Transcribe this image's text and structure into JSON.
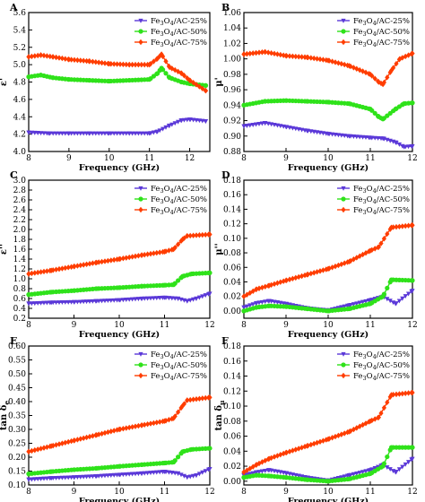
{
  "chart_data": [
    {
      "panel": "A",
      "type": "line",
      "xlabel": "Frequency (GHz)",
      "ylabel": "ε'",
      "xlim": [
        8,
        12.5
      ],
      "ylim": [
        4.0,
        5.6
      ],
      "xticks": [
        "8",
        "9",
        "10",
        "11",
        "12"
      ],
      "yticks": [
        "4.0",
        "4.2",
        "4.4",
        "4.6",
        "4.8",
        "5.0",
        "5.2",
        "5.4",
        "5.6"
      ],
      "legend": "top-right",
      "series": [
        {
          "name": "Fe3O4/AC-25%",
          "color": "#5b39d8",
          "marker": "triangle-down",
          "x": [
            8,
            8.5,
            9,
            9.5,
            10,
            10.5,
            11,
            11.2,
            11.5,
            11.8,
            12,
            12.4
          ],
          "y": [
            4.22,
            4.21,
            4.21,
            4.21,
            4.21,
            4.21,
            4.21,
            4.23,
            4.3,
            4.36,
            4.37,
            4.35
          ]
        },
        {
          "name": "Fe3O4/AC-50%",
          "color": "#2fe21a",
          "marker": "circle",
          "x": [
            8,
            8.3,
            8.6,
            9,
            9.5,
            10,
            10.5,
            11,
            11.2,
            11.3,
            11.5,
            11.8,
            12,
            12.4
          ],
          "y": [
            4.86,
            4.88,
            4.85,
            4.83,
            4.82,
            4.81,
            4.82,
            4.83,
            4.9,
            4.96,
            4.85,
            4.8,
            4.78,
            4.76
          ]
        },
        {
          "name": "Fe3O4/AC-75%",
          "color": "#ff3d00",
          "marker": "diamond",
          "x": [
            8,
            8.3,
            8.6,
            9,
            9.5,
            10,
            10.5,
            11,
            11.2,
            11.3,
            11.5,
            11.8,
            12,
            12.4
          ],
          "y": [
            5.09,
            5.11,
            5.09,
            5.06,
            5.04,
            5.01,
            5.0,
            5.0,
            5.07,
            5.12,
            4.97,
            4.9,
            4.82,
            4.7
          ]
        }
      ]
    },
    {
      "panel": "B",
      "type": "line",
      "xlabel": "Frequency (GHz)",
      "ylabel": "μ'",
      "xlim": [
        8,
        12
      ],
      "ylim": [
        0.88,
        1.06
      ],
      "xticks": [
        "8",
        "9",
        "10",
        "11",
        "12"
      ],
      "yticks": [
        "0.88",
        "0.90",
        "0.92",
        "0.94",
        "0.96",
        "0.98",
        "1.00",
        "1.02",
        "1.04",
        "1.06"
      ],
      "legend": "top-right",
      "series": [
        {
          "name": "Fe3O4/AC-25%",
          "color": "#5b39d8",
          "marker": "triangle-down",
          "x": [
            8,
            8.5,
            9,
            9.5,
            10,
            10.5,
            11,
            11.3,
            11.6,
            11.8,
            12
          ],
          "y": [
            0.913,
            0.917,
            0.912,
            0.907,
            0.903,
            0.9,
            0.898,
            0.897,
            0.892,
            0.886,
            0.887
          ]
        },
        {
          "name": "Fe3O4/AC-50%",
          "color": "#2fe21a",
          "marker": "circle",
          "x": [
            8,
            8.5,
            9,
            9.5,
            10,
            10.5,
            11,
            11.2,
            11.3,
            11.6,
            11.8,
            12
          ],
          "y": [
            0.94,
            0.945,
            0.946,
            0.945,
            0.944,
            0.942,
            0.935,
            0.925,
            0.922,
            0.935,
            0.942,
            0.943
          ]
        },
        {
          "name": "Fe3O4/AC-75%",
          "color": "#ff3d00",
          "marker": "diamond",
          "x": [
            8,
            8.5,
            9,
            9.5,
            10,
            10.5,
            11,
            11.2,
            11.3,
            11.5,
            11.7,
            12
          ],
          "y": [
            1.006,
            1.009,
            1.004,
            1.002,
            0.998,
            0.991,
            0.98,
            0.97,
            0.967,
            0.985,
            1.0,
            1.007
          ]
        }
      ]
    },
    {
      "panel": "C",
      "type": "line",
      "xlabel": "Frequency (GHz)",
      "ylabel": "ε''",
      "xlim": [
        8,
        12
      ],
      "ylim": [
        0.2,
        3.0
      ],
      "xticks": [
        "8",
        "9",
        "10",
        "11",
        "12"
      ],
      "yticks": [
        "0.2",
        "0.4",
        "0.6",
        "0.8",
        "1.0",
        "1.2",
        "1.4",
        "1.6",
        "1.8",
        "2.0",
        "2.2",
        "2.4",
        "2.6",
        "2.8",
        "3.0"
      ],
      "legend": "top-right",
      "series": [
        {
          "name": "Fe3O4/AC-25%",
          "color": "#5b39d8",
          "marker": "triangle-down",
          "x": [
            8,
            8.5,
            9,
            9.5,
            10,
            10.5,
            11,
            11.3,
            11.5,
            11.7,
            12
          ],
          "y": [
            0.5,
            0.52,
            0.53,
            0.55,
            0.57,
            0.6,
            0.62,
            0.6,
            0.55,
            0.6,
            0.7
          ]
        },
        {
          "name": "Fe3O4/AC-50%",
          "color": "#2fe21a",
          "marker": "circle",
          "x": [
            8,
            8.5,
            9,
            9.5,
            10,
            10.5,
            11,
            11.2,
            11.4,
            11.6,
            12
          ],
          "y": [
            0.68,
            0.73,
            0.76,
            0.8,
            0.82,
            0.85,
            0.87,
            0.88,
            1.05,
            1.1,
            1.12
          ]
        },
        {
          "name": "Fe3O4/AC-75%",
          "color": "#ff3d00",
          "marker": "diamond",
          "x": [
            8,
            8.5,
            9,
            9.5,
            10,
            10.5,
            11,
            11.2,
            11.4,
            11.5,
            12
          ],
          "y": [
            1.1,
            1.17,
            1.25,
            1.33,
            1.4,
            1.48,
            1.55,
            1.6,
            1.8,
            1.87,
            1.9
          ]
        }
      ]
    },
    {
      "panel": "D",
      "type": "line",
      "xlabel": "Frequency (GHz)",
      "ylabel": "μ''",
      "xlim": [
        8,
        12
      ],
      "ylim": [
        -0.01,
        0.18
      ],
      "xticks": [
        "8",
        "9",
        "10",
        "11",
        "12"
      ],
      "yticks": [
        "0.00",
        "0.02",
        "0.04",
        "0.06",
        "0.08",
        "0.10",
        "0.12",
        "0.14",
        "0.16",
        "0.18"
      ],
      "legend": "top-right",
      "series": [
        {
          "name": "Fe3O4/AC-25%",
          "color": "#5b39d8",
          "marker": "triangle-down",
          "x": [
            8,
            8.3,
            8.6,
            9,
            9.5,
            10,
            10.5,
            11,
            11.3,
            11.6,
            12
          ],
          "y": [
            0.005,
            0.011,
            0.014,
            0.01,
            0.004,
            0.001,
            0.008,
            0.015,
            0.02,
            0.01,
            0.028
          ]
        },
        {
          "name": "Fe3O4/AC-50%",
          "color": "#2fe21a",
          "marker": "circle",
          "x": [
            8,
            8.3,
            8.6,
            9,
            9.5,
            10,
            10.5,
            11,
            11.3,
            11.5,
            12
          ],
          "y": [
            0.0,
            0.005,
            0.007,
            0.006,
            0.003,
            0.0,
            0.003,
            0.01,
            0.02,
            0.043,
            0.042
          ]
        },
        {
          "name": "Fe3O4/AC-75%",
          "color": "#ff3d00",
          "marker": "diamond",
          "x": [
            8,
            8.3,
            8.6,
            9,
            9.5,
            10,
            10.5,
            11,
            11.2,
            11.5,
            12
          ],
          "y": [
            0.02,
            0.03,
            0.035,
            0.042,
            0.05,
            0.058,
            0.068,
            0.083,
            0.088,
            0.115,
            0.118
          ]
        }
      ]
    },
    {
      "panel": "E",
      "type": "line",
      "xlabel": "Frequency (GHz)",
      "ylabel": "tan δe",
      "xlim": [
        8,
        12
      ],
      "ylim": [
        0.1,
        0.6
      ],
      "xticks": [
        "8",
        "9",
        "10",
        "11",
        "12"
      ],
      "yticks": [
        "0.10",
        "0.15",
        "0.20",
        "0.25",
        "0.30",
        "0.35",
        "0.40",
        "0.45",
        "0.50",
        "0.55",
        "0.60"
      ],
      "legend": "top-right",
      "series": [
        {
          "name": "Fe3O4/AC-25%",
          "color": "#5b39d8",
          "marker": "triangle-down",
          "x": [
            8,
            8.5,
            9,
            9.5,
            10,
            10.5,
            11,
            11.3,
            11.5,
            11.7,
            12
          ],
          "y": [
            0.12,
            0.125,
            0.128,
            0.132,
            0.137,
            0.142,
            0.148,
            0.142,
            0.128,
            0.135,
            0.158
          ]
        },
        {
          "name": "Fe3O4/AC-50%",
          "color": "#2fe21a",
          "marker": "circle",
          "x": [
            8,
            8.5,
            9,
            9.5,
            10,
            10.5,
            11,
            11.2,
            11.4,
            11.6,
            12
          ],
          "y": [
            0.14,
            0.148,
            0.155,
            0.16,
            0.167,
            0.173,
            0.179,
            0.182,
            0.22,
            0.228,
            0.232
          ]
        },
        {
          "name": "Fe3O4/AC-75%",
          "color": "#ff3d00",
          "marker": "diamond",
          "x": [
            8,
            8.5,
            9,
            9.5,
            10,
            10.5,
            11,
            11.2,
            11.4,
            11.5,
            12
          ],
          "y": [
            0.22,
            0.24,
            0.26,
            0.28,
            0.3,
            0.315,
            0.33,
            0.34,
            0.385,
            0.405,
            0.415
          ]
        }
      ]
    },
    {
      "panel": "F",
      "type": "line",
      "xlabel": "Frequency (GHz)",
      "ylabel": "tan δμ",
      "xlim": [
        8,
        12
      ],
      "ylim": [
        -0.005,
        0.18
      ],
      "xticks": [
        "8",
        "9",
        "10",
        "11",
        "12"
      ],
      "yticks": [
        "0.00",
        "0.02",
        "0.04",
        "0.06",
        "0.08",
        "0.10",
        "0.12",
        "0.14",
        "0.16",
        "0.18"
      ],
      "legend": "top-right",
      "series": [
        {
          "name": "Fe3O4/AC-25%",
          "color": "#5b39d8",
          "marker": "triangle-down",
          "x": [
            8,
            8.3,
            8.6,
            9,
            9.5,
            10,
            10.5,
            11,
            11.3,
            11.6,
            12
          ],
          "y": [
            0.008,
            0.012,
            0.015,
            0.011,
            0.005,
            0.001,
            0.008,
            0.015,
            0.022,
            0.012,
            0.03
          ]
        },
        {
          "name": "Fe3O4/AC-50%",
          "color": "#2fe21a",
          "marker": "circle",
          "x": [
            8,
            8.3,
            8.6,
            9,
            9.5,
            10,
            10.5,
            11,
            11.3,
            11.5,
            12
          ],
          "y": [
            0.005,
            0.008,
            0.007,
            0.005,
            0.002,
            0.0,
            0.003,
            0.01,
            0.02,
            0.045,
            0.045
          ]
        },
        {
          "name": "Fe3O4/AC-75%",
          "color": "#ff3d00",
          "marker": "diamond",
          "x": [
            8,
            8.3,
            8.6,
            9,
            9.5,
            10,
            10.5,
            11,
            11.2,
            11.5,
            12
          ],
          "y": [
            0.012,
            0.022,
            0.03,
            0.038,
            0.047,
            0.056,
            0.066,
            0.08,
            0.085,
            0.115,
            0.118
          ]
        }
      ]
    }
  ]
}
